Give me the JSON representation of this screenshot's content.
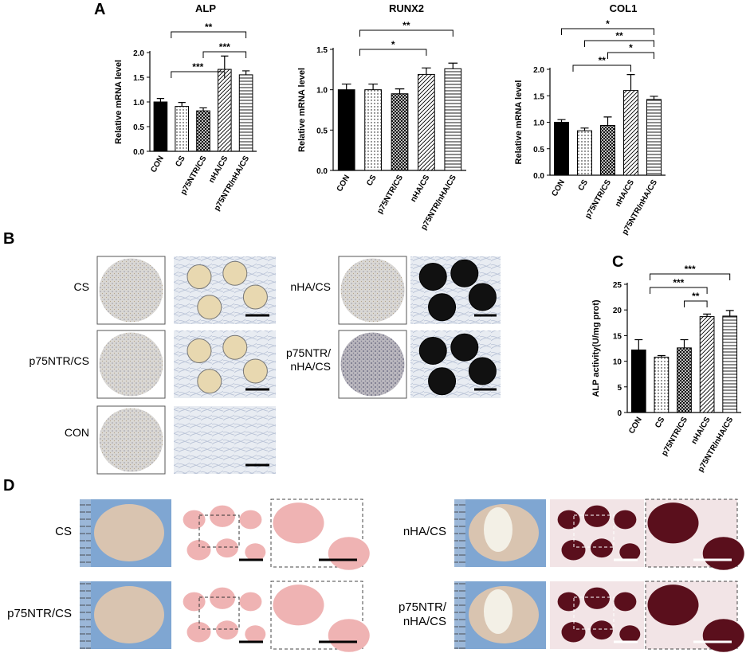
{
  "figure": {
    "panel_labels": [
      "A",
      "B",
      "C",
      "D"
    ]
  },
  "panel_b": {
    "labels": [
      [
        "CS"
      ],
      [
        "p75NTR/CS"
      ],
      [
        "CON"
      ],
      [
        "nHA/CS"
      ],
      [
        "p75NTR/",
        "nHA/CS"
      ]
    ]
  },
  "panel_d": {
    "labels": [
      [
        "CS"
      ],
      [
        "p75NTR/CS"
      ],
      [
        "nHA/CS"
      ],
      [
        "p75NTR/",
        "nHA/CS"
      ]
    ]
  },
  "chart_data": [
    {
      "type": "bar",
      "title": "ALP",
      "ylabel": "Relative mRNA level",
      "categories": [
        "CON",
        "CS",
        "p75NTR/CS",
        "nHA/CS",
        "p75NTR/nHA/CS"
      ],
      "values": [
        1.0,
        0.91,
        0.82,
        1.66,
        1.55
      ],
      "errors": [
        0.07,
        0.08,
        0.06,
        0.27,
        0.08
      ],
      "ylim": [
        0,
        2
      ],
      "yticks": [
        {
          "value": 0,
          "label": "0.0"
        },
        0.5,
        {
          "value": 1,
          "label": "1.0"
        },
        1.5,
        {
          "value": 2,
          "label": "2.0"
        }
      ],
      "patterns": [
        "solid",
        "dots",
        "grid",
        "diagonal",
        "horizontal"
      ],
      "annotations": [
        "**",
        "***",
        "***"
      ]
    },
    {
      "type": "bar",
      "title": "RUNX2",
      "ylabel": "Relative mRNA level",
      "categories": [
        "CON",
        "CS",
        "p75NTR/CS",
        "nHA/CS",
        "p75NTR/nHA/CS"
      ],
      "values": [
        1.0,
        1.0,
        0.95,
        1.19,
        1.26
      ],
      "errors": [
        0.07,
        0.07,
        0.06,
        0.08,
        0.07
      ],
      "ylim": [
        0,
        1.5
      ],
      "yticks": [
        {
          "value": 0,
          "label": "0.0"
        },
        0.5,
        {
          "value": 1,
          "label": "1.0"
        },
        1.5
      ],
      "patterns": [
        "solid",
        "dots",
        "grid",
        "diagonal",
        "horizontal"
      ],
      "annotations": [
        "**",
        "*"
      ]
    },
    {
      "type": "bar",
      "title": "COL1",
      "ylabel": "Relative mRNA level",
      "categories": [
        "CON",
        "CS",
        "p75NTR/CS",
        "nHA/CS",
        "p75NTR/nHA/CS"
      ],
      "values": [
        1.0,
        0.84,
        0.94,
        1.6,
        1.43
      ],
      "errors": [
        0.05,
        0.05,
        0.16,
        0.3,
        0.06
      ],
      "ylim": [
        0,
        2
      ],
      "yticks": [
        {
          "value": 0,
          "label": "0.0"
        },
        0.5,
        {
          "value": 1,
          "label": "1.0"
        },
        1.5,
        {
          "value": 2,
          "label": "2.0"
        }
      ],
      "patterns": [
        "solid",
        "dots",
        "grid",
        "diagonal",
        "horizontal"
      ],
      "annotations": [
        "*",
        "**",
        "*",
        "**"
      ]
    },
    {
      "type": "bar",
      "ylabel": "ALP activity(U/mg prot)",
      "categories": [
        "CON",
        "CS",
        "p75NTR/CS",
        "nHA/CS",
        "p75NTR/nHA/CS"
      ],
      "values": [
        12.2,
        10.8,
        12.6,
        18.7,
        18.8
      ],
      "errors": [
        2.0,
        0.3,
        1.6,
        0.5,
        1.1
      ],
      "ylim": [
        0,
        25
      ],
      "yticks": [
        0,
        5,
        10,
        15,
        20,
        25
      ],
      "patterns": [
        "solid",
        "dots",
        "grid",
        "diagonal",
        "horizontal"
      ],
      "annotations": [
        "***",
        "***",
        "**"
      ]
    }
  ]
}
